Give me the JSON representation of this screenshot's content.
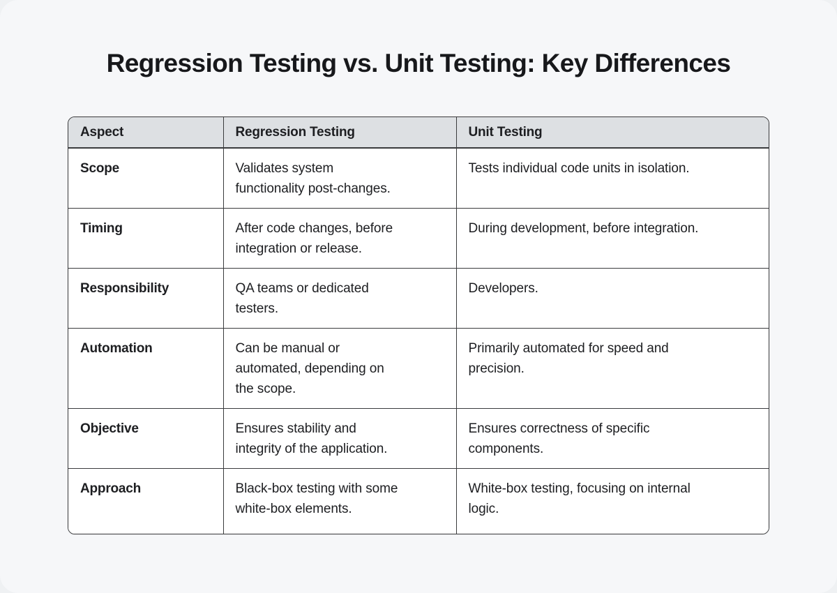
{
  "page": {
    "title": "Regression Testing vs. Unit Testing: Key Differences"
  },
  "table": {
    "columns": [
      "Aspect",
      "Regression Testing",
      "Unit Testing"
    ],
    "rows": [
      {
        "aspect": "Scope",
        "regression": "Validates system\nfunctionality post-changes.",
        "unit": "Tests individual code units in isolation."
      },
      {
        "aspect": "Timing",
        "regression": "After code changes, before\nintegration or release.",
        "unit": "During development, before integration."
      },
      {
        "aspect": "Responsibility",
        "regression": "QA teams or dedicated\ntesters.",
        "unit": "Developers."
      },
      {
        "aspect": "Automation",
        "regression": "Can be manual or\nautomated, depending on\nthe scope.",
        "unit": "Primarily automated for speed and\nprecision."
      },
      {
        "aspect": "Objective",
        "regression": "Ensures stability and\nintegrity of the application.",
        "unit": "Ensures correctness of specific\ncomponents."
      },
      {
        "aspect": "Approach",
        "regression": "Black-box testing with some\nwhite-box elements.",
        "unit": "White-box testing, focusing on internal\nlogic."
      }
    ]
  },
  "colors": {
    "page_background": "#f6f7f9",
    "header_background": "#dde0e3",
    "border": "#3a3b3d",
    "text": "#1d1e21"
  }
}
